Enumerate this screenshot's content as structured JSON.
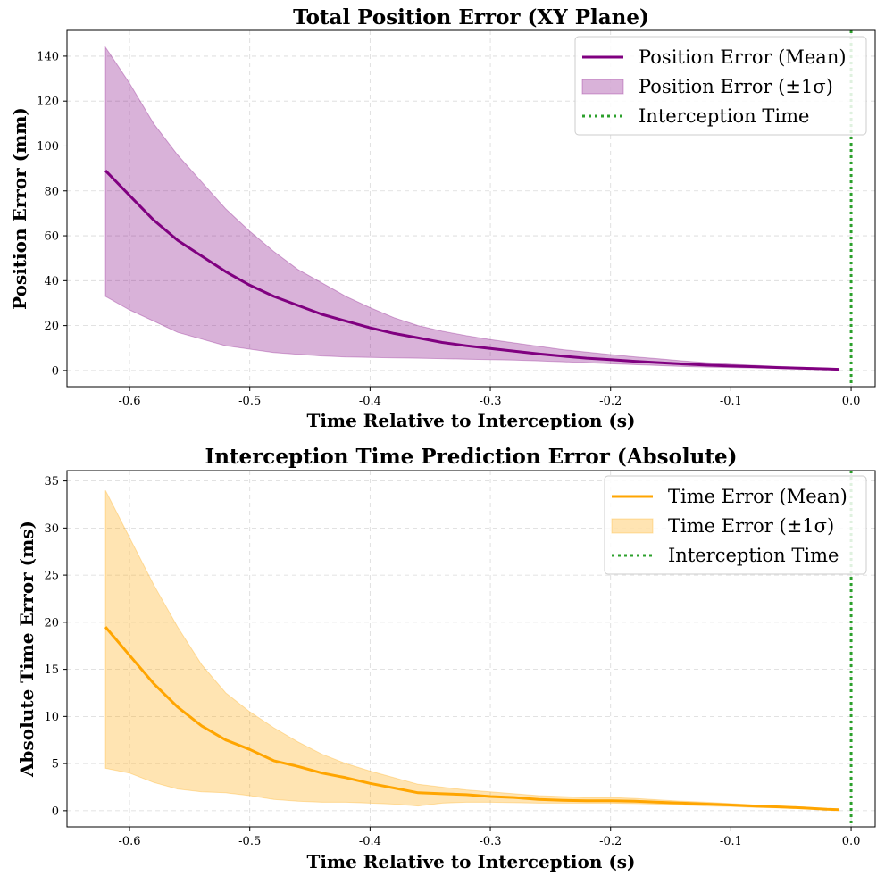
{
  "chart_data": [
    {
      "type": "line",
      "title": "Total Position Error (XY Plane)",
      "xlabel": "Time Relative to Interception (s)",
      "ylabel": "Position Error (mm)",
      "xlim": [
        -0.652,
        0.02
      ],
      "ylim": [
        -7.2,
        151.5
      ],
      "xticks": [
        -0.6,
        -0.5,
        -0.4,
        -0.3,
        -0.2,
        -0.1,
        0.0
      ],
      "xtick_labels": [
        "-0.6",
        "-0.5",
        "-0.4",
        "-0.3",
        "-0.2",
        "-0.1",
        "0.0"
      ],
      "yticks": [
        0,
        20,
        40,
        60,
        80,
        100,
        120,
        140
      ],
      "ytick_labels": [
        "0",
        "20",
        "40",
        "60",
        "80",
        "100",
        "120",
        "140"
      ],
      "grid": true,
      "legend_position": "top-right",
      "colors": {
        "mean": "#800080",
        "band": "#800080",
        "vline": "#2ca02c"
      },
      "x": [
        -0.62,
        -0.6,
        -0.58,
        -0.56,
        -0.54,
        -0.52,
        -0.5,
        -0.48,
        -0.46,
        -0.44,
        -0.42,
        -0.4,
        -0.38,
        -0.36,
        -0.34,
        -0.32,
        -0.3,
        -0.28,
        -0.26,
        -0.24,
        -0.22,
        -0.2,
        -0.18,
        -0.16,
        -0.14,
        -0.12,
        -0.1,
        -0.08,
        -0.06,
        -0.04,
        -0.02,
        -0.01
      ],
      "series": [
        {
          "name": "Position Error (Mean)",
          "kind": "line",
          "values": [
            89,
            78,
            67,
            58,
            51,
            44,
            38,
            33,
            29,
            25,
            22,
            19,
            16.5,
            14.5,
            12.5,
            11,
            9.8,
            8.6,
            7.4,
            6.4,
            5.5,
            4.8,
            4.1,
            3.5,
            2.9,
            2.4,
            2.0,
            1.7,
            1.3,
            1.0,
            0.7,
            0.5
          ]
        },
        {
          "name": "Position Error (±1σ)",
          "kind": "band",
          "lower": [
            33,
            27,
            22,
            17,
            14,
            11,
            9.5,
            8,
            7.2,
            6.5,
            6,
            5.8,
            5.6,
            5.5,
            5.3,
            5.0,
            4.8,
            4.6,
            4.3,
            3.9,
            3.5,
            3.0,
            2.6,
            2.2,
            1.8,
            1.5,
            1.3,
            1.1,
            0.9,
            0.7,
            0.5,
            0.4
          ],
          "upper": [
            144,
            128,
            110,
            96,
            84,
            72,
            62,
            53,
            45,
            39,
            33,
            28,
            23.5,
            20,
            17.5,
            15.5,
            13.8,
            12.3,
            10.8,
            9.3,
            8.2,
            7.1,
            6.1,
            5.2,
            4.3,
            3.5,
            2.8,
            2.3,
            1.8,
            1.4,
            1.0,
            0.7
          ]
        }
      ],
      "vline": {
        "name": "Interception Time",
        "x": 0.0
      }
    },
    {
      "type": "line",
      "title": "Interception Time Prediction Error (Absolute)",
      "xlabel": "Time Relative to Interception (s)",
      "ylabel": "Absolute Time Error (ms)",
      "xlim": [
        -0.652,
        0.02
      ],
      "ylim": [
        -1.72,
        36.1
      ],
      "xticks": [
        -0.6,
        -0.5,
        -0.4,
        -0.3,
        -0.2,
        -0.1,
        0.0
      ],
      "xtick_labels": [
        "-0.6",
        "-0.5",
        "-0.4",
        "-0.3",
        "-0.2",
        "-0.1",
        "0.0"
      ],
      "yticks": [
        0,
        5,
        10,
        15,
        20,
        25,
        30,
        35
      ],
      "ytick_labels": [
        "0",
        "5",
        "10",
        "15",
        "20",
        "25",
        "30",
        "35"
      ],
      "grid": true,
      "legend_position": "top-right",
      "colors": {
        "mean": "#ffa500",
        "band": "#ffa500",
        "vline": "#2ca02c"
      },
      "x": [
        -0.62,
        -0.6,
        -0.58,
        -0.56,
        -0.54,
        -0.52,
        -0.5,
        -0.48,
        -0.46,
        -0.44,
        -0.42,
        -0.4,
        -0.38,
        -0.36,
        -0.34,
        -0.32,
        -0.3,
        -0.28,
        -0.26,
        -0.24,
        -0.22,
        -0.2,
        -0.18,
        -0.16,
        -0.14,
        -0.12,
        -0.1,
        -0.08,
        -0.06,
        -0.04,
        -0.02,
        -0.01
      ],
      "series": [
        {
          "name": "Time Error (Mean)",
          "kind": "line",
          "values": [
            19.5,
            16.5,
            13.5,
            11,
            9,
            7.5,
            6.5,
            5.3,
            4.7,
            4.0,
            3.5,
            2.9,
            2.4,
            1.9,
            1.8,
            1.7,
            1.5,
            1.4,
            1.2,
            1.1,
            1.05,
            1.05,
            1.0,
            0.9,
            0.8,
            0.7,
            0.6,
            0.5,
            0.4,
            0.3,
            0.15,
            0.1
          ]
        },
        {
          "name": "Time Error (±1σ)",
          "kind": "band",
          "lower": [
            4.5,
            4.0,
            3.0,
            2.3,
            2.0,
            1.9,
            1.6,
            1.2,
            1.0,
            0.9,
            0.9,
            0.8,
            0.7,
            0.5,
            0.8,
            0.9,
            0.9,
            0.85,
            0.8,
            0.8,
            0.8,
            0.8,
            0.75,
            0.7,
            0.6,
            0.5,
            0.45,
            0.35,
            0.3,
            0.2,
            0.1,
            0.05
          ],
          "upper": [
            34,
            29,
            24,
            19.5,
            15.5,
            12.5,
            10.5,
            8.8,
            7.3,
            6.0,
            5.0,
            4.2,
            3.5,
            2.8,
            2.5,
            2.2,
            2.0,
            1.8,
            1.6,
            1.5,
            1.4,
            1.4,
            1.3,
            1.15,
            1.0,
            0.9,
            0.75,
            0.6,
            0.5,
            0.4,
            0.2,
            0.15
          ]
        }
      ],
      "vline": {
        "name": "Interception Time",
        "x": 0.0
      }
    }
  ]
}
